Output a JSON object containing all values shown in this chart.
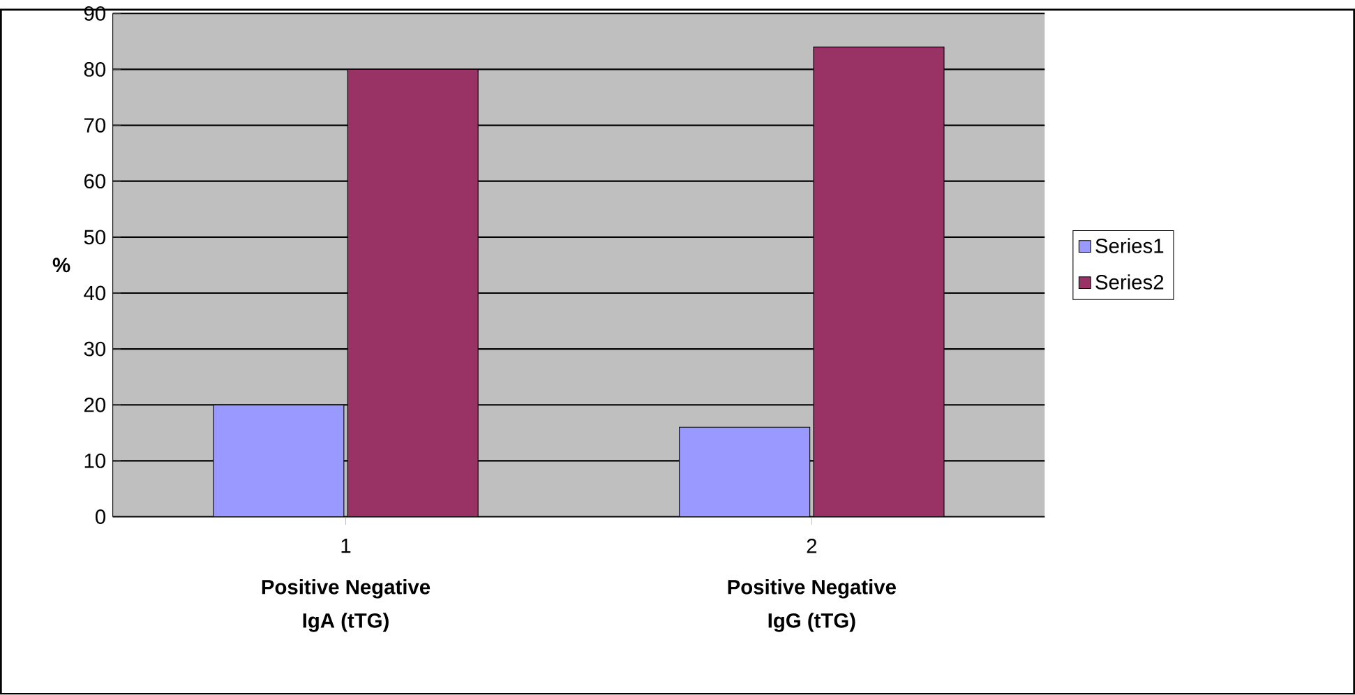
{
  "chart_data": {
    "type": "bar",
    "categories": [
      "1",
      "2"
    ],
    "ylabel": "%",
    "series": [
      {
        "name": "Series1",
        "color": "#9999ff",
        "values": [
          20,
          16
        ]
      },
      {
        "name": "Series2",
        "color": "#993366",
        "values": [
          80,
          84
        ]
      }
    ],
    "ylim": [
      0,
      90
    ],
    "yticks": [
      0,
      10,
      20,
      30,
      40,
      50,
      60,
      70,
      80,
      90
    ],
    "grid": "y",
    "legend": "right",
    "annotations": [
      "Positive  Negative",
      "IgA (tTG)",
      "Positive  Negative",
      "IgG (tTG)"
    ]
  }
}
